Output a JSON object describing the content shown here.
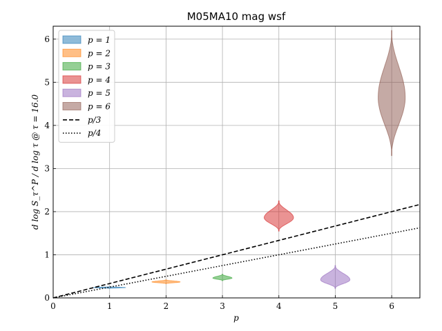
{
  "chart_data": {
    "type": "violin",
    "title": "M05MA10 mag wsf",
    "xlabel": "p",
    "ylabel": "d log S_τ^P / d log τ @ τ = 16.0",
    "xlim": [
      0,
      6.5
    ],
    "ylim": [
      0,
      6.3
    ],
    "xticks": [
      0,
      1,
      2,
      3,
      4,
      5,
      6
    ],
    "yticks": [
      0,
      1,
      2,
      3,
      4,
      5,
      6
    ],
    "grid": true,
    "legend_position": "top-left",
    "series": [
      {
        "name": "p = 1",
        "x": 1,
        "color": "#1f77b4",
        "min": 0.22,
        "max": 0.26,
        "median": 0.24,
        "halfwidth": 0.28
      },
      {
        "name": "p = 2",
        "x": 2,
        "color": "#ff7f0e",
        "min": 0.33,
        "max": 0.42,
        "median": 0.37,
        "halfwidth": 0.25
      },
      {
        "name": "p = 3",
        "x": 3,
        "color": "#2ca02c",
        "min": 0.4,
        "max": 0.55,
        "median": 0.46,
        "halfwidth": 0.17
      },
      {
        "name": "p = 4",
        "x": 4,
        "color": "#d62728",
        "min": 1.55,
        "max": 2.25,
        "median": 1.86,
        "halfwidth": 0.26
      },
      {
        "name": "p = 5",
        "x": 5,
        "color": "#9467bd",
        "min": 0.22,
        "max": 0.75,
        "median": 0.42,
        "halfwidth": 0.26
      },
      {
        "name": "p = 6",
        "x": 6,
        "color": "#8c564b",
        "min": 3.3,
        "max": 6.2,
        "median": 4.65,
        "halfwidth": 0.24
      }
    ],
    "reference_lines": [
      {
        "name": "p/3",
        "slope": 0.3333,
        "style": "dashed",
        "color": "#000000"
      },
      {
        "name": "p/4",
        "slope": 0.25,
        "style": "dotted",
        "color": "#000000"
      }
    ]
  }
}
